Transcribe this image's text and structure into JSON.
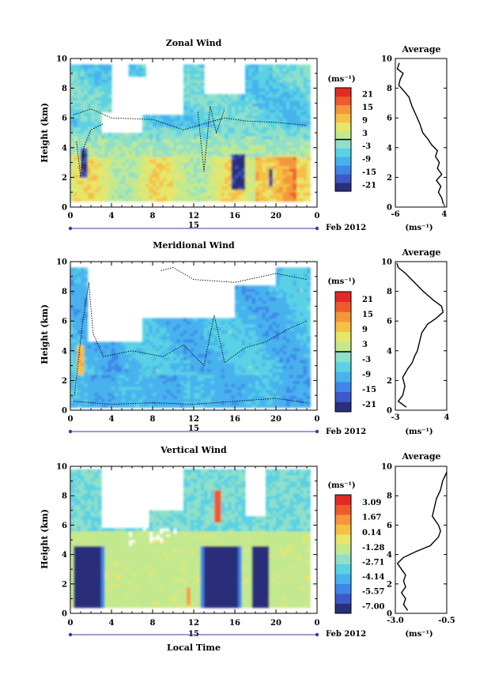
{
  "figure": {
    "date_label": "Feb 2012",
    "day_label": "15",
    "xlabel": "Local Time"
  },
  "colors": {
    "cmap": [
      "#2a2f7a",
      "#3d58c8",
      "#3f86e8",
      "#46b2ee",
      "#5ad1e4",
      "#8fe0c8",
      "#c3e98f",
      "#e6e66a",
      "#f6c046",
      "#f5963a",
      "#ee5a2e",
      "#e22a24"
    ],
    "contour": "#000000",
    "line": "#000000"
  },
  "chart_data": [
    {
      "id": "zonal",
      "type": "heatmap",
      "title": "Zonal Wind",
      "ylabel": "Height (km)",
      "xlim": [
        0,
        24
      ],
      "ylim": [
        0,
        10
      ],
      "x_ticks": [
        "0",
        "4",
        "8",
        "12",
        "16",
        "20",
        "0"
      ],
      "y_ticks": [
        "0",
        "2",
        "4",
        "6",
        "8",
        "10"
      ],
      "colorbar": {
        "unit": "(ms⁻¹)",
        "ticks": [
          "21",
          "15",
          "9",
          "3",
          "-3",
          "-9",
          "-15",
          "-21"
        ],
        "range": [
          -24,
          24
        ],
        "zero_line": true
      },
      "average": {
        "title": "Average",
        "xlabel": "(ms⁻¹)",
        "x_ticks": [
          "-6",
          "4"
        ],
        "xlim": [
          -6,
          4.5
        ],
        "ylim": [
          0,
          10
        ],
        "y_ticks": [
          "0",
          "2",
          "4",
          "6",
          "8",
          "10"
        ],
        "profile": [
          [
            3.8,
            0.2
          ],
          [
            3.5,
            0.6
          ],
          [
            2.8,
            1.0
          ],
          [
            3.3,
            1.4
          ],
          [
            2.4,
            1.8
          ],
          [
            3.5,
            2.2
          ],
          [
            2.6,
            2.6
          ],
          [
            3.0,
            3.0
          ],
          [
            2.2,
            3.4
          ],
          [
            2.6,
            3.8
          ],
          [
            1.4,
            4.2
          ],
          [
            0.6,
            4.6
          ],
          [
            -0.4,
            5.0
          ],
          [
            -1.0,
            5.6
          ],
          [
            -1.8,
            6.2
          ],
          [
            -2.6,
            6.8
          ],
          [
            -3.2,
            7.4
          ],
          [
            -4.2,
            7.8
          ],
          [
            -5.3,
            8.2
          ],
          [
            -5.0,
            8.6
          ],
          [
            -4.4,
            9.0
          ],
          [
            -5.6,
            9.3
          ],
          [
            -5.2,
            9.7
          ]
        ]
      }
    },
    {
      "id": "meridional",
      "type": "heatmap",
      "title": "Meridional Wind",
      "ylabel": "Height (km)",
      "xlim": [
        0,
        24
      ],
      "ylim": [
        0,
        10
      ],
      "x_ticks": [
        "0",
        "4",
        "8",
        "12",
        "16",
        "20",
        "0"
      ],
      "y_ticks": [
        "0",
        "2",
        "4",
        "6",
        "8",
        "10"
      ],
      "colorbar": {
        "unit": "(ms⁻¹)",
        "ticks": [
          "21",
          "15",
          "9",
          "3",
          "-3",
          "-9",
          "-15",
          "-21"
        ],
        "range": [
          -24,
          24
        ],
        "zero_line": true
      },
      "average": {
        "title": "Average",
        "xlabel": "(ms⁻¹)",
        "x_ticks": [
          "-3",
          "4"
        ],
        "xlim": [
          -3,
          4
        ],
        "ylim": [
          0,
          10
        ],
        "y_ticks": [
          "0",
          "2",
          "4",
          "6",
          "8",
          "10"
        ],
        "profile": [
          [
            -1.5,
            0.2
          ],
          [
            -2.6,
            0.6
          ],
          [
            -2.0,
            1.0
          ],
          [
            -1.7,
            1.6
          ],
          [
            -2.0,
            2.2
          ],
          [
            -1.3,
            2.8
          ],
          [
            -0.7,
            3.2
          ],
          [
            -0.4,
            3.6
          ],
          [
            0.0,
            4.0
          ],
          [
            0.3,
            4.6
          ],
          [
            0.6,
            5.2
          ],
          [
            1.4,
            5.8
          ],
          [
            2.6,
            6.2
          ],
          [
            3.5,
            6.6
          ],
          [
            3.3,
            7.0
          ],
          [
            2.2,
            7.4
          ],
          [
            0.8,
            8.0
          ],
          [
            -0.4,
            8.6
          ],
          [
            -1.6,
            9.2
          ],
          [
            -2.6,
            9.6
          ],
          [
            -2.8,
            9.9
          ]
        ]
      }
    },
    {
      "id": "vertical",
      "type": "heatmap",
      "title": "Vertical Wind",
      "ylabel": "Height (km)",
      "xlabel": "Local Time",
      "xlim": [
        0,
        24
      ],
      "ylim": [
        0,
        10
      ],
      "x_ticks": [
        "0",
        "4",
        "8",
        "12",
        "16",
        "20",
        "0"
      ],
      "y_ticks": [
        "0",
        "2",
        "4",
        "6",
        "8",
        "10"
      ],
      "colorbar": {
        "unit": "(ms⁻¹)",
        "ticks": [
          "3.09",
          "1.67",
          "0.14",
          "-1.28",
          "-2.71",
          "-4.14",
          "-5.57",
          "-7.00"
        ],
        "range": [
          -7.7,
          3.8
        ],
        "zero_line": false
      },
      "average": {
        "title": "Average",
        "xlabel": "(ms⁻¹)",
        "x_ticks": [
          "-3.0",
          "-0.5"
        ],
        "xlim": [
          -3.0,
          -0.5
        ],
        "ylim": [
          0,
          10
        ],
        "y_ticks": [
          "0",
          "2",
          "4",
          "6",
          "8",
          "10"
        ],
        "profile": [
          [
            -2.4,
            0.2
          ],
          [
            -2.6,
            0.6
          ],
          [
            -2.5,
            1.0
          ],
          [
            -2.7,
            1.4
          ],
          [
            -2.5,
            1.8
          ],
          [
            -2.6,
            2.2
          ],
          [
            -2.5,
            2.6
          ],
          [
            -2.7,
            3.0
          ],
          [
            -2.9,
            3.4
          ],
          [
            -2.6,
            3.8
          ],
          [
            -2.0,
            4.2
          ],
          [
            -1.3,
            4.6
          ],
          [
            -0.9,
            5.2
          ],
          [
            -0.8,
            5.6
          ],
          [
            -0.9,
            6.0
          ],
          [
            -1.2,
            6.6
          ],
          [
            -1.1,
            7.2
          ],
          [
            -1.0,
            7.8
          ],
          [
            -0.8,
            8.4
          ],
          [
            -0.7,
            9.0
          ],
          [
            -0.5,
            9.6
          ]
        ]
      }
    }
  ]
}
